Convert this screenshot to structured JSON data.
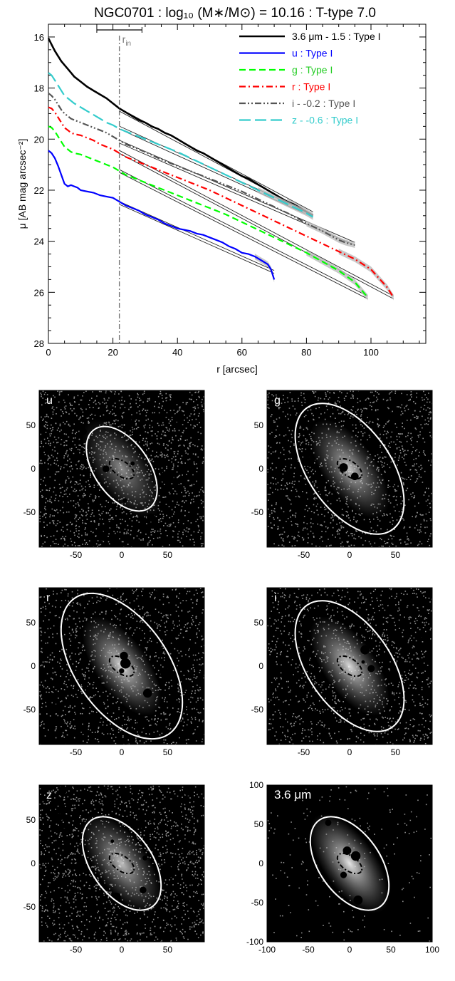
{
  "chart_data": [
    {
      "type": "line",
      "title": "NGC0701 : log₁₀ (M∗/M⊙) = 10.16 : T-type 7.0",
      "xlabel": "r [arcsec]",
      "ylabel": "μ [AB mag arcsec⁻²]",
      "xlim": [
        0,
        117
      ],
      "ylim": [
        28,
        15.5
      ],
      "y_inverted": true,
      "x_ticks": [
        0,
        20,
        40,
        60,
        80,
        100
      ],
      "y_ticks": [
        16,
        18,
        20,
        22,
        24,
        26,
        28
      ],
      "r_in": {
        "label": "r",
        "subscript": "in",
        "value": 22,
        "errbar": [
          15,
          29
        ]
      },
      "legend_position": "top-right",
      "series": [
        {
          "name": "3.6 μm - 1.5 : Type I",
          "color": "#000000",
          "dash": "solid",
          "width": 2.6,
          "x": [
            0,
            1,
            2,
            3,
            4,
            5,
            6,
            7,
            8,
            10,
            12,
            14,
            16,
            18,
            20,
            22,
            24,
            26,
            28,
            30,
            32,
            34,
            36,
            38,
            40,
            42,
            44,
            46,
            48,
            50,
            52,
            54,
            56,
            58,
            60,
            62,
            64,
            66,
            68,
            70,
            72,
            74,
            76,
            78,
            80,
            82
          ],
          "y": [
            16.05,
            16.3,
            16.55,
            16.75,
            16.95,
            17.1,
            17.25,
            17.4,
            17.55,
            17.75,
            17.95,
            18.1,
            18.25,
            18.4,
            18.6,
            18.8,
            18.95,
            19.1,
            19.25,
            19.35,
            19.5,
            19.6,
            19.75,
            19.85,
            20.0,
            20.15,
            20.3,
            20.45,
            20.55,
            20.7,
            20.85,
            21.0,
            21.15,
            21.3,
            21.45,
            21.55,
            21.7,
            21.85,
            22.0,
            22.15,
            22.3,
            22.45,
            22.55,
            22.7,
            22.85,
            23.0
          ],
          "fit_x": [
            22,
            82
          ],
          "fit_y": [
            18.85,
            22.9
          ]
        },
        {
          "name": "u : Type I",
          "color": "#0000ff",
          "dash": "solid",
          "width": 2.2,
          "x": [
            0,
            1,
            2,
            3,
            4,
            5,
            6,
            7,
            8,
            9,
            10,
            12,
            14,
            16,
            18,
            20,
            22,
            24,
            26,
            28,
            30,
            32,
            34,
            36,
            38,
            40,
            42,
            44,
            46,
            48,
            50,
            52,
            54,
            56,
            58,
            60,
            62,
            64,
            66,
            68,
            69,
            70
          ],
          "y": [
            20.45,
            20.55,
            20.75,
            21.05,
            21.4,
            21.75,
            21.85,
            21.8,
            21.85,
            21.9,
            22.0,
            22.05,
            22.1,
            22.2,
            22.25,
            22.3,
            22.45,
            22.6,
            22.7,
            22.8,
            22.95,
            23.05,
            23.15,
            23.3,
            23.4,
            23.5,
            23.55,
            23.6,
            23.7,
            23.75,
            23.85,
            23.95,
            24.05,
            24.2,
            24.3,
            24.45,
            24.5,
            24.6,
            24.75,
            24.9,
            25.1,
            25.5
          ],
          "fit_x": [
            22,
            70
          ],
          "fit_y": [
            22.5,
            25.2
          ]
        },
        {
          "name": "g : Type I",
          "color": "#00ff00",
          "dash": "dash",
          "width": 2.2,
          "x": [
            0,
            1,
            2,
            3,
            4,
            5,
            6,
            7,
            8,
            10,
            12,
            14,
            16,
            18,
            20,
            22,
            24,
            26,
            28,
            30,
            32,
            34,
            36,
            38,
            40,
            42,
            44,
            46,
            48,
            50,
            55,
            60,
            65,
            70,
            75,
            80,
            85,
            90,
            95,
            99
          ],
          "y": [
            19.5,
            19.55,
            19.7,
            19.9,
            20.1,
            20.3,
            20.4,
            20.5,
            20.55,
            20.6,
            20.7,
            20.8,
            20.9,
            21.0,
            21.1,
            21.25,
            21.4,
            21.5,
            21.6,
            21.7,
            21.8,
            21.9,
            22.0,
            22.1,
            22.2,
            22.3,
            22.4,
            22.5,
            22.6,
            22.7,
            22.95,
            23.25,
            23.55,
            23.85,
            24.15,
            24.45,
            24.8,
            25.15,
            25.6,
            26.2
          ],
          "fit_x": [
            22,
            99
          ],
          "fit_y": [
            21.25,
            26.2
          ]
        },
        {
          "name": "r : Type I",
          "color": "#ff0000",
          "dash": "dashdot",
          "width": 2.2,
          "x": [
            0,
            1,
            2,
            3,
            4,
            5,
            6,
            7,
            8,
            10,
            12,
            14,
            16,
            18,
            20,
            22,
            24,
            26,
            28,
            30,
            32,
            34,
            36,
            38,
            40,
            45,
            50,
            55,
            60,
            65,
            70,
            75,
            80,
            85,
            90,
            95,
            100,
            105,
            107
          ],
          "y": [
            18.75,
            18.8,
            18.95,
            19.15,
            19.35,
            19.55,
            19.65,
            19.75,
            19.8,
            19.85,
            19.95,
            20.05,
            20.2,
            20.3,
            20.4,
            20.55,
            20.7,
            20.8,
            20.9,
            21.0,
            21.1,
            21.2,
            21.3,
            21.4,
            21.5,
            21.75,
            22.0,
            22.3,
            22.6,
            22.9,
            23.2,
            23.5,
            23.8,
            24.1,
            24.4,
            24.7,
            25.1,
            25.8,
            26.2
          ],
          "fit_x": [
            22,
            107
          ],
          "fit_y": [
            20.5,
            26.2
          ]
        },
        {
          "name": "i - -0.2 : Type I",
          "color": "#555555",
          "dash": "dashdotdot",
          "width": 2.2,
          "x": [
            0,
            1,
            2,
            3,
            4,
            5,
            6,
            7,
            8,
            10,
            12,
            14,
            16,
            18,
            20,
            22,
            24,
            26,
            28,
            30,
            35,
            40,
            45,
            50,
            55,
            60,
            65,
            70,
            75,
            80,
            85,
            90,
            92,
            95
          ],
          "y": [
            18.2,
            18.3,
            18.45,
            18.65,
            18.85,
            19.0,
            19.1,
            19.2,
            19.25,
            19.35,
            19.45,
            19.55,
            19.65,
            19.75,
            19.9,
            20.05,
            20.2,
            20.3,
            20.4,
            20.5,
            20.8,
            21.05,
            21.3,
            21.55,
            21.8,
            22.05,
            22.35,
            22.65,
            22.95,
            23.3,
            23.6,
            23.95,
            24.05,
            24.15
          ],
          "fit_x": [
            22,
            95
          ],
          "fit_y": [
            20.1,
            24.1
          ]
        },
        {
          "name": "z - -0.6 : Type I",
          "color": "#33cccc",
          "dash": "longdash",
          "width": 2.2,
          "x": [
            0,
            1,
            2,
            3,
            4,
            5,
            6,
            7,
            8,
            10,
            12,
            14,
            16,
            18,
            20,
            22,
            24,
            26,
            28,
            30,
            35,
            40,
            45,
            50,
            55,
            60,
            65,
            70,
            75,
            80,
            82
          ],
          "y": [
            17.4,
            17.5,
            17.7,
            17.9,
            18.1,
            18.3,
            18.4,
            18.5,
            18.6,
            18.75,
            18.9,
            19.05,
            19.2,
            19.35,
            19.45,
            19.6,
            19.7,
            19.8,
            19.9,
            20.0,
            20.25,
            20.5,
            20.8,
            21.1,
            21.4,
            21.7,
            22.0,
            22.3,
            22.6,
            22.9,
            23.05
          ],
          "fit_x": [
            22,
            82
          ],
          "fit_y": [
            19.55,
            23.0
          ]
        }
      ]
    },
    {
      "type": "image",
      "panels": [
        {
          "label": "u",
          "rx": 0.58,
          "ry": 0.33,
          "angle": 55,
          "inner_rx": 0.17,
          "inner_ry": 0.09,
          "bright": 0.55,
          "noise": 0.6,
          "axis": 90
        },
        {
          "label": "g",
          "rx": 0.9,
          "ry": 0.5,
          "angle": 55,
          "inner_rx": 0.17,
          "inner_ry": 0.09,
          "bright": 0.75,
          "noise": 0.5,
          "axis": 90
        },
        {
          "label": "r",
          "rx": 1.0,
          "ry": 0.56,
          "angle": 55,
          "inner_rx": 0.17,
          "inner_ry": 0.09,
          "bright": 0.85,
          "noise": 0.45,
          "axis": 90
        },
        {
          "label": "i",
          "rx": 0.9,
          "ry": 0.5,
          "angle": 55,
          "inner_rx": 0.17,
          "inner_ry": 0.09,
          "bright": 0.85,
          "noise": 0.45,
          "axis": 90
        },
        {
          "label": "z",
          "rx": 0.64,
          "ry": 0.37,
          "angle": 55,
          "inner_rx": 0.17,
          "inner_ry": 0.09,
          "bright": 0.75,
          "noise": 0.55,
          "axis": 90
        },
        {
          "label": "3.6 μm",
          "rx": 0.64,
          "ry": 0.37,
          "angle": 55,
          "inner_rx": 0.17,
          "inner_ry": 0.09,
          "bright": 0.9,
          "noise": 0.08,
          "axis": 100
        }
      ],
      "tick_labels_90": [
        "-50",
        "0",
        "50"
      ],
      "tick_labels_100": [
        "-100",
        "-50",
        "0",
        "50",
        "100"
      ]
    }
  ]
}
